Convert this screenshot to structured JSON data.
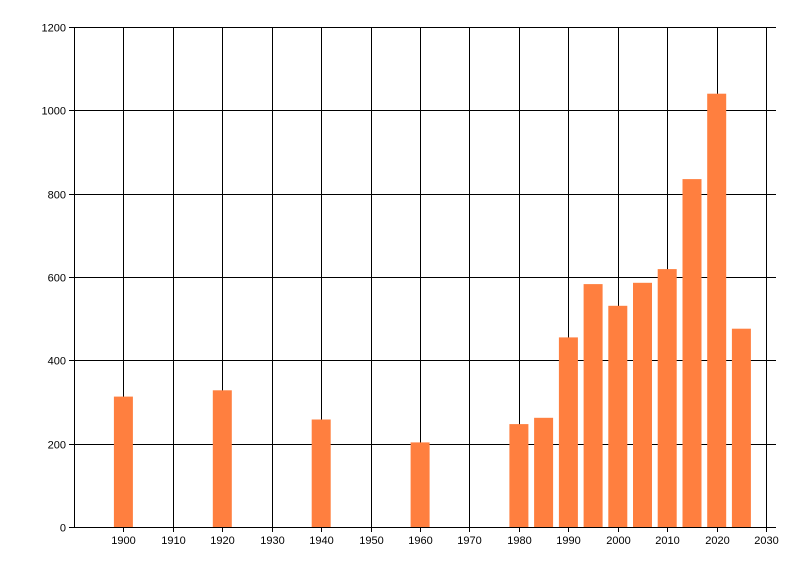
{
  "chart_data": {
    "type": "bar",
    "title": "",
    "xlabel": "",
    "ylabel": "",
    "x": [
      1900,
      1920,
      1940,
      1960,
      1980,
      1985,
      1990,
      1995,
      2000,
      2005,
      2010,
      2015,
      2020,
      2025
    ],
    "values": [
      313,
      328,
      258,
      203,
      247,
      262,
      455,
      583,
      531,
      586,
      619,
      835,
      1040,
      476
    ],
    "xlim": [
      1890,
      2032
    ],
    "ylim": [
      0,
      1200
    ],
    "x_ticks": [
      1900,
      1910,
      1920,
      1930,
      1940,
      1950,
      1960,
      1970,
      1980,
      1990,
      2000,
      2010,
      2020,
      2030
    ],
    "y_ticks": [
      0,
      200,
      400,
      600,
      800,
      1000,
      1200
    ],
    "grid": true,
    "legend": "none",
    "colors": {
      "bar": "#ff7f3f",
      "grid": "#000000",
      "axis": "#000000",
      "background": "#ffffff"
    }
  }
}
